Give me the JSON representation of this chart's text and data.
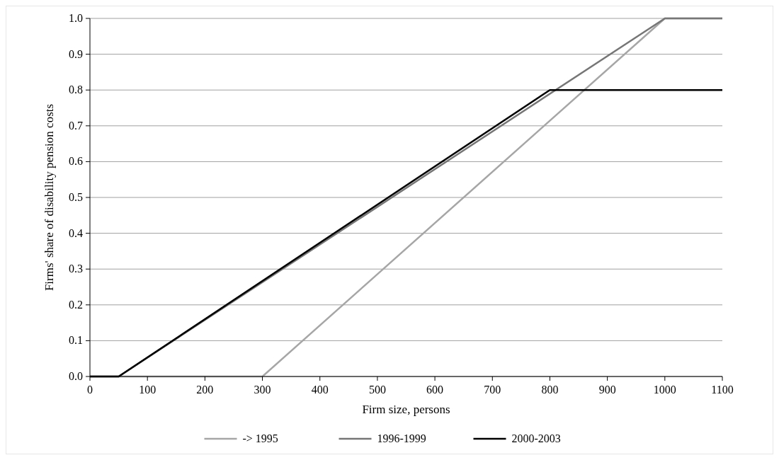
{
  "chart_data": {
    "type": "line",
    "xlabel": "Firm size, persons",
    "ylabel": "Firms' share of disability pension costs",
    "xlim": [
      0,
      1100
    ],
    "xticks": [
      0,
      100,
      200,
      300,
      400,
      500,
      600,
      700,
      800,
      900,
      1000,
      1100
    ],
    "ylim": [
      0,
      1
    ],
    "yticks": [
      {
        "value": 0,
        "label": "0.0"
      },
      0.1,
      0.2,
      0.3,
      0.4,
      0.5,
      0.6,
      0.7,
      0.8,
      0.9,
      {
        "value": 1,
        "label": "1.0"
      }
    ],
    "grid": "y",
    "legend": "bottom",
    "marker": "none",
    "line_style": "solid",
    "series": [
      {
        "name": "-> 1995",
        "color": "#a6a6a6",
        "x": [
          0,
          300,
          1000,
          1100
        ],
        "values": [
          0,
          0,
          1,
          1
        ]
      },
      {
        "name": "1996-1999",
        "color": "#767676",
        "x": [
          0,
          50,
          1000,
          1100
        ],
        "values": [
          0,
          0,
          1,
          1
        ]
      },
      {
        "name": "2000-2003",
        "color": "#000000",
        "x": [
          0,
          50,
          800,
          1100
        ],
        "values": [
          0,
          0,
          0.8,
          0.8
        ]
      }
    ]
  }
}
